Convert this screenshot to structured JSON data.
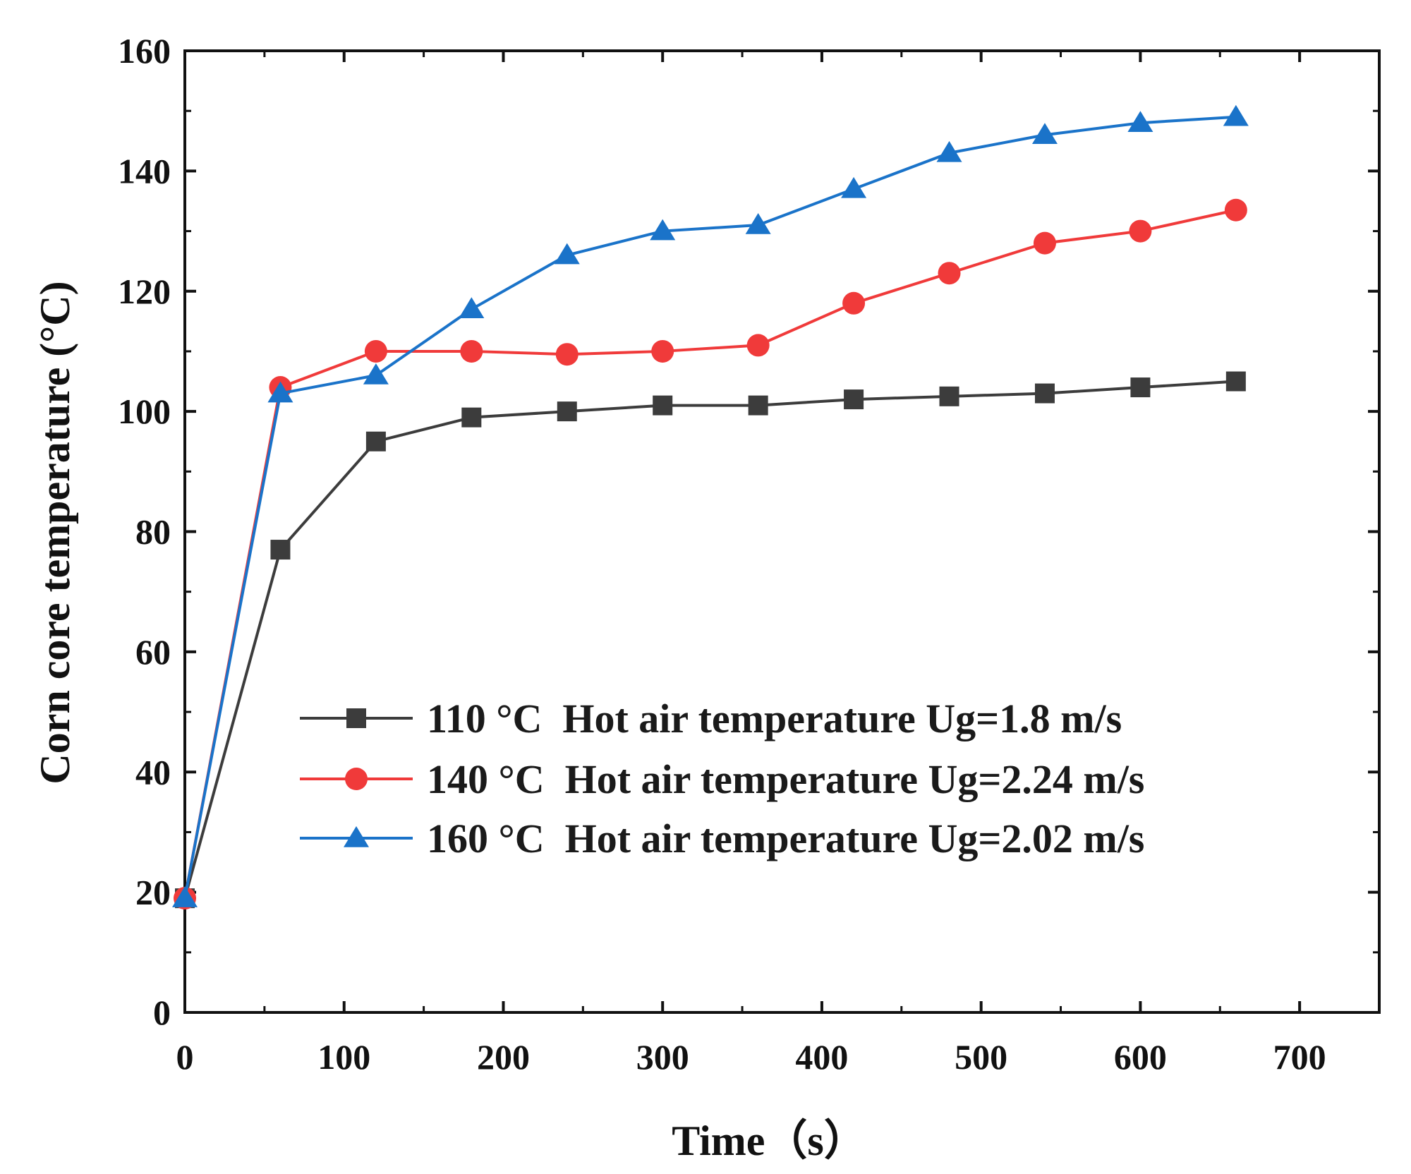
{
  "chart_data": {
    "type": "line",
    "title": "",
    "xlabel": "Time（s）",
    "ylabel": "Corn core temperature (°C)",
    "xlim": [
      0,
      750
    ],
    "ylim": [
      0,
      160
    ],
    "xticks": [
      0,
      100,
      200,
      300,
      400,
      500,
      600,
      700
    ],
    "yticks": [
      0,
      20,
      40,
      60,
      80,
      100,
      120,
      140,
      160
    ],
    "xtick_labels": [
      "0",
      "100",
      "200",
      "300",
      "400",
      "500",
      "600",
      "700"
    ],
    "ytick_labels": [
      "0",
      "20",
      "40",
      "60",
      "80",
      "100",
      "120",
      "140",
      "160"
    ],
    "grid": false,
    "legend_position": "center-right",
    "x": [
      0,
      60,
      120,
      180,
      240,
      300,
      360,
      420,
      480,
      540,
      600,
      660
    ],
    "series": [
      {
        "name": "110 °C  Hot air temperature Ug=1.8 m/s",
        "color": "#3c3c3c",
        "marker": "square",
        "values": [
          19,
          77,
          95,
          99,
          100,
          101,
          101,
          102,
          102.5,
          103,
          104,
          105
        ]
      },
      {
        "name": "140 °C  Hot air temperature Ug=2.24 m/s",
        "color": "#f03a3a",
        "marker": "circle",
        "values": [
          19,
          104,
          110,
          110,
          109.5,
          110,
          111,
          118,
          123,
          128,
          130,
          133.5
        ]
      },
      {
        "name": "160 °C  Hot air temperature Ug=2.02 m/s",
        "color": "#1a73c9",
        "marker": "triangle",
        "values": [
          19,
          103,
          106,
          117,
          126,
          130,
          131,
          137,
          143,
          146,
          148,
          149
        ]
      }
    ]
  }
}
